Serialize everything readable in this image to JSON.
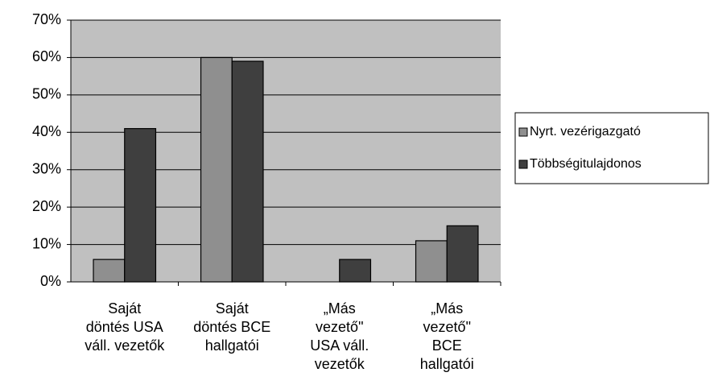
{
  "chart_data": {
    "type": "bar",
    "categories": [
      "Saját\ndöntés USA\nváll. vezetők",
      "Saját\ndöntés BCE\nhallgatói",
      "„Más\nvezető\"\nUSA váll.\nvezetők",
      "„Más\nvezető\"\nBCE\nhallgatói"
    ],
    "series": [
      {
        "name": "Nyrt. vezérigazgató",
        "color": "#8f8f8f",
        "values": [
          6,
          60,
          0,
          11
        ]
      },
      {
        "name": "Többségitulajdonos",
        "color": "#3f3f3f",
        "values": [
          41,
          59,
          6,
          15
        ]
      }
    ],
    "ylim": [
      0,
      70
    ],
    "yticks": [
      {
        "value": 0,
        "label": "0%"
      },
      {
        "value": 10,
        "label": "10%"
      },
      {
        "value": 20,
        "label": "20%"
      },
      {
        "value": 30,
        "label": "30%"
      },
      {
        "value": 40,
        "label": "40%"
      },
      {
        "value": 50,
        "label": "50%"
      },
      {
        "value": 60,
        "label": "60%"
      },
      {
        "value": 70,
        "label": "70%"
      }
    ],
    "grid": true,
    "legend": "right"
  }
}
